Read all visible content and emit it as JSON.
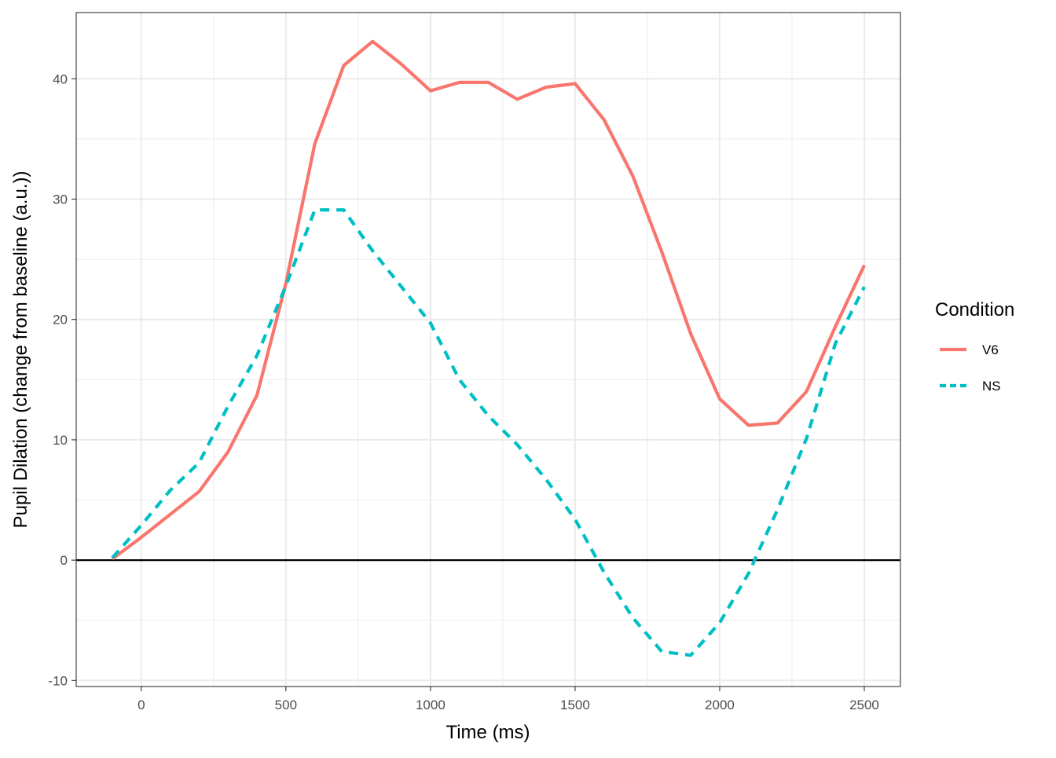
{
  "chart_data": {
    "type": "line",
    "xlabel": "Time (ms)",
    "ylabel": "Pupil Dilation (change from baseline (a.u.))",
    "xlim": [
      -225,
      2625
    ],
    "ylim": [
      -10.5,
      45.5
    ],
    "x_ticks": [
      0,
      500,
      1000,
      1500,
      2000,
      2500
    ],
    "y_ticks": [
      -10,
      0,
      10,
      20,
      30,
      40
    ],
    "x_minor": [
      250,
      750,
      1250,
      1750,
      2250
    ],
    "y_minor": [
      -5,
      5,
      15,
      25,
      35
    ],
    "grid": true,
    "reference_line_y": 0,
    "legend": {
      "title": "Condition",
      "position": "right"
    },
    "series": [
      {
        "name": "V6",
        "color": "#F8766D",
        "line_style": "solid",
        "x": [
          -100,
          0,
          100,
          200,
          300,
          400,
          500,
          600,
          700,
          800,
          900,
          1000,
          1100,
          1200,
          1300,
          1400,
          1500,
          1600,
          1700,
          1800,
          1900,
          2000,
          2100,
          2200,
          2300,
          2400,
          2500
        ],
        "values": [
          0.1,
          1.9,
          3.8,
          5.7,
          9.0,
          13.7,
          23.0,
          34.6,
          41.1,
          43.1,
          41.2,
          39.0,
          39.7,
          39.7,
          38.3,
          39.3,
          39.6,
          36.6,
          31.9,
          25.6,
          18.8,
          13.4,
          11.2,
          11.4,
          14.0,
          19.4,
          24.5
        ]
      },
      {
        "name": "NS",
        "color": "#00BFC4",
        "line_style": "dashed",
        "x": [
          -100,
          0,
          100,
          200,
          300,
          400,
          500,
          600,
          700,
          800,
          900,
          1000,
          1100,
          1200,
          1300,
          1400,
          1500,
          1600,
          1700,
          1800,
          1900,
          2000,
          2100,
          2200,
          2300,
          2400,
          2500
        ],
        "values": [
          0.2,
          2.9,
          5.8,
          8.1,
          12.8,
          17.0,
          22.8,
          29.1,
          29.1,
          25.7,
          22.7,
          19.7,
          15.0,
          12.0,
          9.6,
          6.7,
          3.4,
          -1.0,
          -4.8,
          -7.6,
          -7.9,
          -5.2,
          -1.1,
          4.2,
          10.1,
          18.0,
          22.7
        ]
      }
    ]
  }
}
